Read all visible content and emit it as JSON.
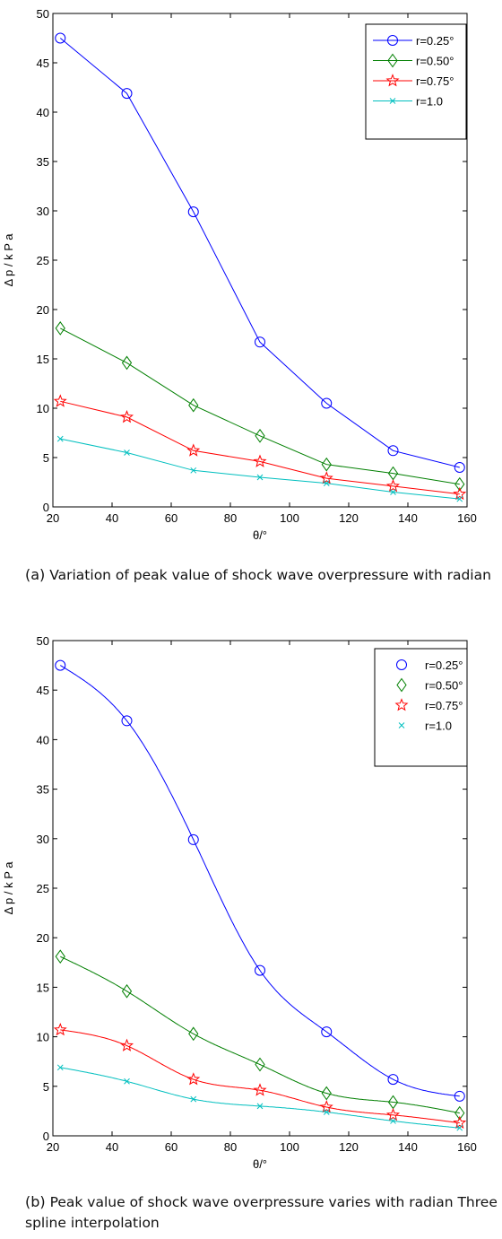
{
  "chart_data": [
    {
      "type": "line",
      "xlabel": "θ/°",
      "ylabel": "Δ p / k P a",
      "xlim": [
        20,
        160
      ],
      "ylim": [
        0,
        50
      ],
      "xticks": [
        "20",
        "40",
        "60",
        "80",
        "100",
        "120",
        "140",
        "160"
      ],
      "yticks": [
        "0",
        "5",
        "10",
        "15",
        "20",
        "25",
        "30",
        "35",
        "40",
        "45",
        "50"
      ],
      "grid": false,
      "legend_position": "top-right",
      "x": [
        22.5,
        45,
        67.5,
        90,
        112.5,
        135,
        157.5
      ],
      "series": [
        {
          "name": "r=0.25°",
          "color": "#0000ff",
          "marker": "circle",
          "values": [
            47.5,
            41.9,
            29.9,
            16.7,
            10.5,
            5.7,
            4.0
          ]
        },
        {
          "name": "r=0.50°",
          "color": "#007f00",
          "marker": "diamond",
          "values": [
            18.1,
            14.6,
            10.3,
            7.2,
            4.3,
            3.4,
            2.3
          ]
        },
        {
          "name": "r=0.75°",
          "color": "#ff0000",
          "marker": "star",
          "values": [
            10.7,
            9.1,
            5.7,
            4.6,
            2.9,
            2.1,
            1.3
          ]
        },
        {
          "name": "r=1.0",
          "color": "#00bfbf",
          "marker": "x",
          "values": [
            6.9,
            5.5,
            3.7,
            3.0,
            2.4,
            1.5,
            0.8
          ]
        }
      ],
      "caption_tag": "(a)",
      "caption_text": "Variation of peak value of shock wave overpressure with radian"
    },
    {
      "type": "line",
      "xlabel": "θ/°",
      "ylabel": "Δ p / k P a",
      "xlim": [
        20,
        160
      ],
      "ylim": [
        0,
        50
      ],
      "xticks": [
        "20",
        "40",
        "60",
        "80",
        "100",
        "120",
        "140",
        "160"
      ],
      "yticks": [
        "0",
        "5",
        "10",
        "15",
        "20",
        "25",
        "30",
        "35",
        "40",
        "45",
        "50"
      ],
      "grid": false,
      "legend_position": "top-right",
      "interpolation": "cubic spline",
      "x": [
        22.5,
        45,
        67.5,
        90,
        112.5,
        135,
        157.5
      ],
      "series": [
        {
          "name": "r=0.25°",
          "color": "#0000ff",
          "marker": "circle",
          "values": [
            47.5,
            41.9,
            29.9,
            16.7,
            10.5,
            5.7,
            4.0
          ]
        },
        {
          "name": "r=0.50°",
          "color": "#007f00",
          "marker": "diamond",
          "values": [
            18.1,
            14.6,
            10.3,
            7.2,
            4.3,
            3.4,
            2.3
          ]
        },
        {
          "name": "r=0.75°",
          "color": "#ff0000",
          "marker": "star",
          "values": [
            10.7,
            9.1,
            5.7,
            4.6,
            2.9,
            2.1,
            1.3
          ]
        },
        {
          "name": "r=1.0",
          "color": "#00bfbf",
          "marker": "x",
          "values": [
            6.9,
            5.5,
            3.7,
            3.0,
            2.4,
            1.5,
            0.8
          ]
        }
      ],
      "caption_tag": "(b)",
      "caption_text": "Peak value of shock wave overpressure varies with radian Three spline interpolation"
    }
  ]
}
